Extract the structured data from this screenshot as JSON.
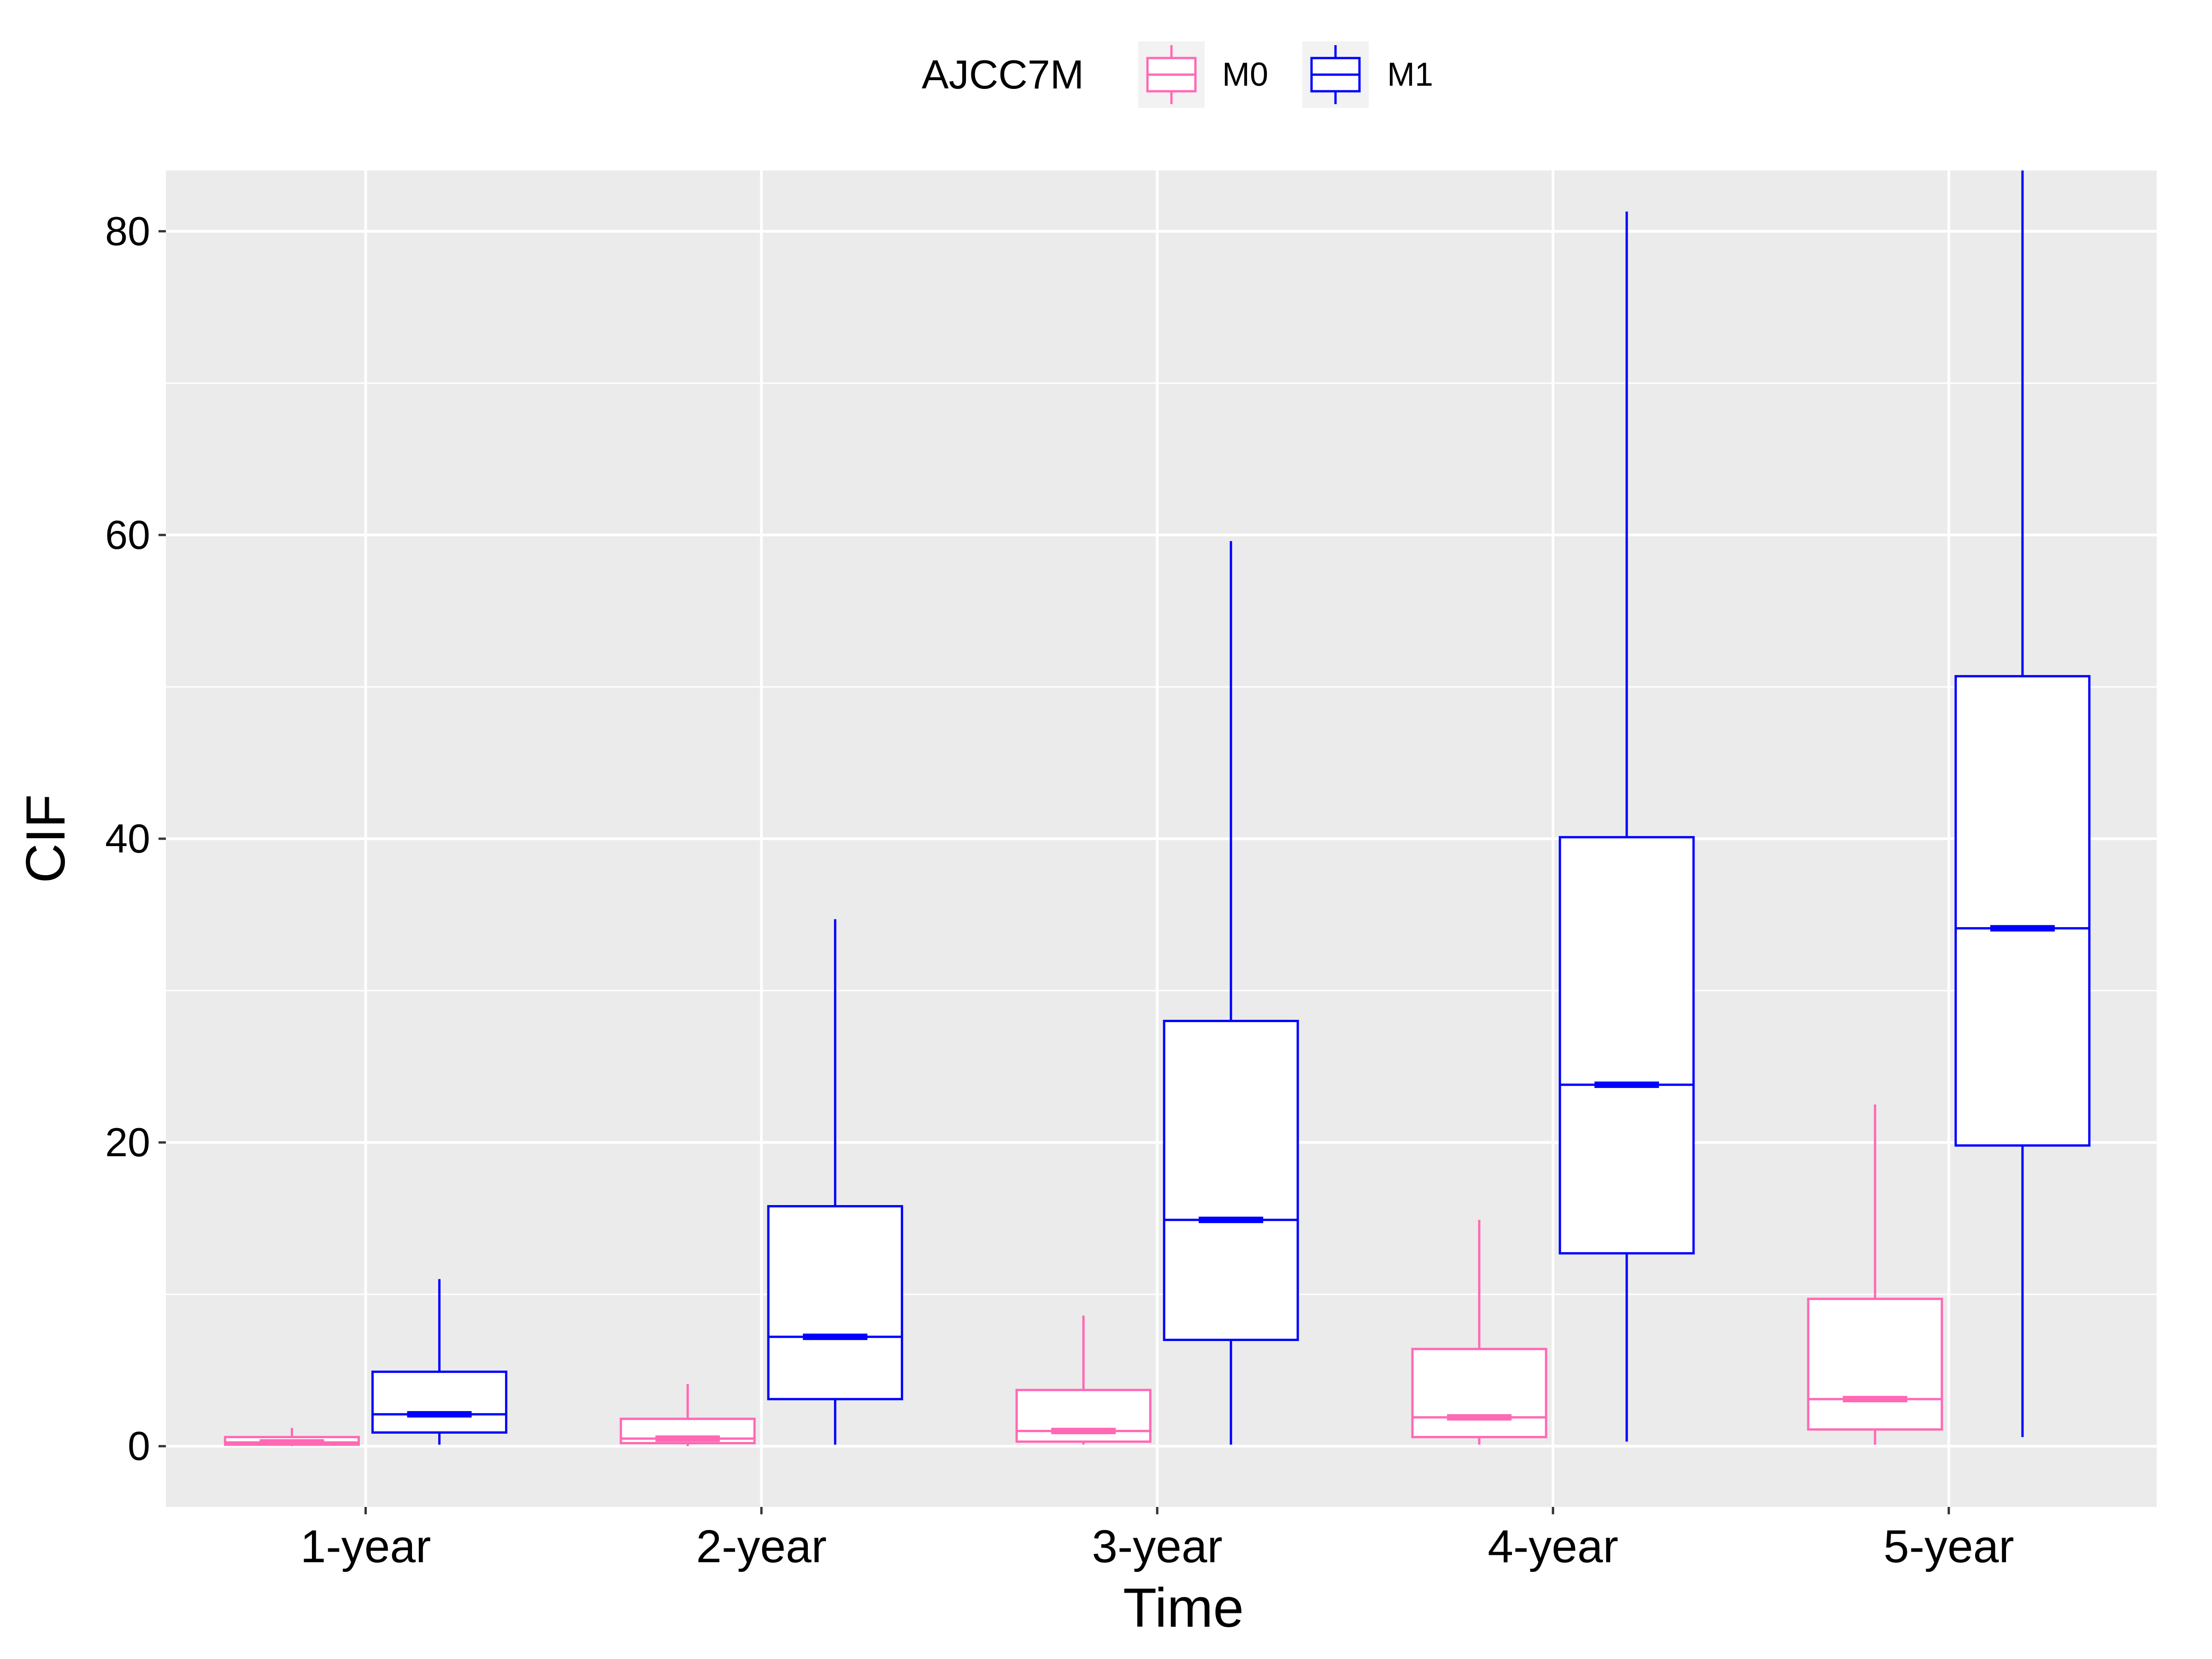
{
  "chart_data": {
    "type": "boxplot",
    "title": "",
    "xlabel": "Time",
    "ylabel": "CIF",
    "categories": [
      "1-year",
      "2-year",
      "3-year",
      "4-year",
      "5-year"
    ],
    "y_ticks": [
      0,
      20,
      40,
      60,
      80
    ],
    "ylim": [
      -4,
      84
    ],
    "grid": true,
    "panel_background": "#EBEBEB",
    "legend": {
      "title": "AJCC7M",
      "position": "top",
      "entries": [
        "M0",
        "M1"
      ]
    },
    "series": [
      {
        "name": "M0",
        "color": "#FF69B4",
        "boxes": [
          {
            "min": 0.0,
            "q1": 0.1,
            "median": 0.25,
            "q3": 0.6,
            "max": 1.2
          },
          {
            "min": 0.0,
            "q1": 0.2,
            "median": 0.5,
            "q3": 1.8,
            "max": 4.1
          },
          {
            "min": 0.1,
            "q1": 0.3,
            "median": 1.0,
            "q3": 3.7,
            "max": 8.6
          },
          {
            "min": 0.1,
            "q1": 0.6,
            "median": 1.9,
            "q3": 6.4,
            "max": 14.9
          },
          {
            "min": 0.1,
            "q1": 1.1,
            "median": 3.1,
            "q3": 9.7,
            "max": 22.5
          }
        ]
      },
      {
        "name": "M1",
        "color": "#0000FF",
        "boxes": [
          {
            "min": 0.1,
            "q1": 0.9,
            "median": 2.1,
            "q3": 4.9,
            "max": 11.0
          },
          {
            "min": 0.1,
            "q1": 3.1,
            "median": 7.2,
            "q3": 15.8,
            "max": 34.7
          },
          {
            "min": 0.1,
            "q1": 7.0,
            "median": 14.9,
            "q3": 28.0,
            "max": 59.6
          },
          {
            "min": 0.3,
            "q1": 12.7,
            "median": 23.8,
            "q3": 40.1,
            "max": 81.3
          },
          {
            "min": 0.6,
            "q1": 19.8,
            "median": 34.1,
            "q3": 50.7,
            "max": 84.0
          }
        ]
      }
    ]
  }
}
